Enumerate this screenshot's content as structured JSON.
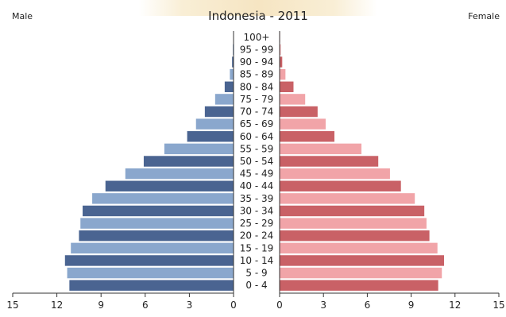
{
  "chart_data": {
    "type": "bar",
    "title": "Indonesia - 2011",
    "left_label": "Male",
    "right_label": "Female",
    "categories": [
      "100+",
      "95 - 99",
      "90 - 94",
      "85 - 89",
      "80 - 84",
      "75 - 79",
      "70 - 74",
      "65 - 69",
      "60 - 64",
      "55 - 59",
      "50 - 54",
      "45 - 49",
      "40 - 44",
      "35 - 39",
      "30 - 34",
      "25 - 29",
      "20 - 24",
      "15 - 19",
      "10 - 14",
      "5 - 9",
      "0 - 4"
    ],
    "series": [
      {
        "name": "Male",
        "values": [
          0.01,
          0.05,
          0.1,
          0.25,
          0.6,
          1.25,
          1.95,
          2.55,
          3.15,
          4.7,
          6.1,
          7.35,
          8.7,
          9.6,
          10.25,
          10.4,
          10.5,
          11.05,
          11.45,
          11.3,
          11.15
        ]
      },
      {
        "name": "Female",
        "values": [
          0.02,
          0.08,
          0.18,
          0.4,
          0.95,
          1.75,
          2.6,
          3.15,
          3.75,
          5.6,
          6.75,
          7.55,
          8.3,
          9.25,
          9.9,
          10.05,
          10.25,
          10.8,
          11.25,
          11.1,
          10.85
        ]
      }
    ],
    "colors": {
      "male_dark": "#4a6491",
      "male_light": "#8aa7cd",
      "female_dark": "#c96166",
      "female_light": "#f1a4a8"
    },
    "x_ticks": [
      "15",
      "12",
      "9",
      "6",
      "3",
      "0"
    ],
    "xlim": [
      0,
      15
    ]
  }
}
